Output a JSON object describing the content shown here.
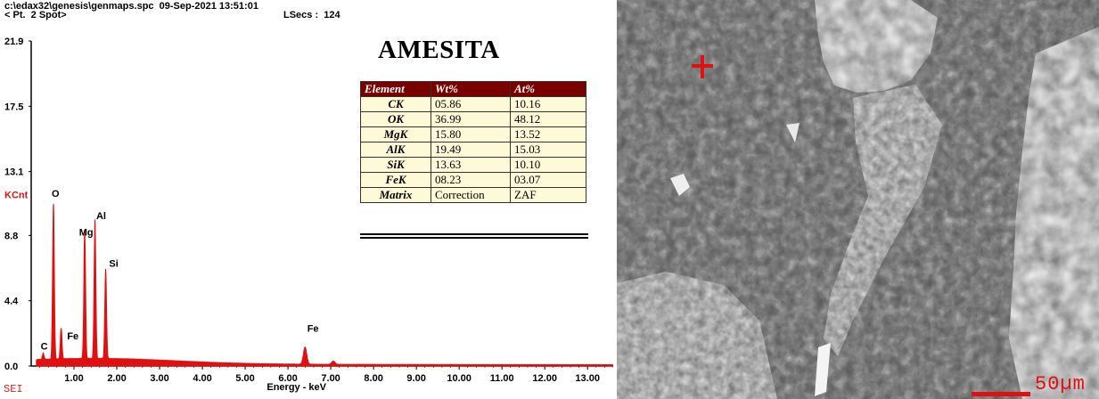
{
  "header": {
    "line1": "c:\\edax32\\genesis\\genmaps.spc  09-Sep-2021 13:51:01",
    "line2": "< Pt.  2 Spot>",
    "lsecs": "LSecs :  124"
  },
  "chart_data": {
    "type": "line",
    "title": "AMESITA",
    "xlabel": "Energy - keV",
    "ylabel": "KCnt",
    "xlim": [
      0.0,
      13.6
    ],
    "ylim": [
      0.0,
      21.9
    ],
    "x_ticks": [
      "1.00",
      "2.00",
      "3.00",
      "4.00",
      "5.00",
      "6.00",
      "7.00",
      "8.00",
      "9.00",
      "10.00",
      "11.00",
      "12.00",
      "13.00"
    ],
    "y_ticks": [
      "0.0",
      "4.4",
      "8.8",
      "13.1",
      "17.5",
      "21.9"
    ],
    "peaks": [
      {
        "label": "C",
        "x": 0.28,
        "y": 0.45
      },
      {
        "label": "O",
        "x": 0.52,
        "y": 10.5
      },
      {
        "label": "Fe",
        "x": 0.7,
        "y": 2.1
      },
      {
        "label": "Mg",
        "x": 1.25,
        "y": 8.7
      },
      {
        "label": "Al",
        "x": 1.49,
        "y": 9.4
      },
      {
        "label": "Si",
        "x": 1.74,
        "y": 6.1
      },
      {
        "label": "Fe",
        "x": 6.4,
        "y": 1.15
      },
      {
        "label": "",
        "x": 7.06,
        "y": 0.22
      }
    ],
    "label_positions": [
      {
        "label": "C",
        "x": 0.22,
        "y": 1.1
      },
      {
        "label": "O",
        "x": 0.48,
        "y": 11.4
      },
      {
        "label": "Fe",
        "x": 0.84,
        "y": 1.8
      },
      {
        "label": "Mg",
        "x": 1.12,
        "y": 8.8
      },
      {
        "label": "Al",
        "x": 1.52,
        "y": 9.9
      },
      {
        "label": "Si",
        "x": 1.82,
        "y": 6.7
      },
      {
        "label": "Fe",
        "x": 6.45,
        "y": 2.3
      }
    ]
  },
  "table": {
    "headers": [
      "Element",
      "Wt%",
      "At%"
    ],
    "rows": [
      [
        "CK",
        "05.86",
        "10.16"
      ],
      [
        "OK",
        "36.99",
        "48.12"
      ],
      [
        "MgK",
        "15.80",
        "13.52"
      ],
      [
        "AlK",
        "19.49",
        "15.03"
      ],
      [
        "SiK",
        "13.63",
        "10.10"
      ],
      [
        "FeK",
        "08.23",
        "03.07"
      ],
      [
        "Matrix",
        "Correction",
        "ZAF"
      ]
    ]
  },
  "micrograph": {
    "mode_label": "SEI",
    "scale_label": "50µm",
    "marker_color": "#e01010",
    "accent_color": "#e01010"
  }
}
